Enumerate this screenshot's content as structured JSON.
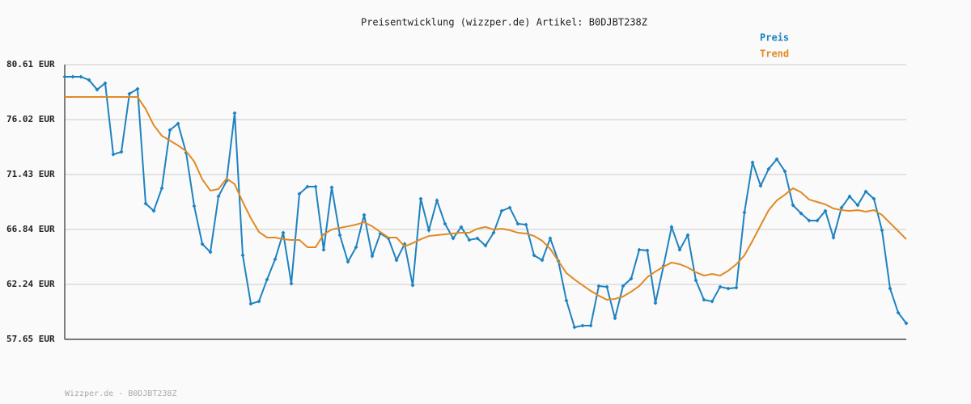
{
  "chart_data": {
    "type": "line",
    "title": "Preisentwicklung (wizzper.de) Artikel: B0DJBT238Z",
    "footer": "Wizzper.de - B0DJBT238Z",
    "ylim": [
      57.65,
      80.61
    ],
    "yticks": [
      {
        "value": 57.65,
        "label": "57.65 EUR"
      },
      {
        "value": 62.24,
        "label": "62.24 EUR"
      },
      {
        "value": 66.84,
        "label": "66.84 EUR"
      },
      {
        "value": 71.43,
        "label": "71.43 EUR"
      },
      {
        "value": 76.02,
        "label": "76.02 EUR"
      },
      {
        "value": 80.61,
        "label": "80.61 EUR"
      }
    ],
    "grid": true,
    "legend": "top-right",
    "series": [
      {
        "name": "Preis",
        "color": "#1e82c0",
        "markers": true,
        "values": [
          79.6,
          79.6,
          79.6,
          79.33,
          78.52,
          79.06,
          73.11,
          73.32,
          78.18,
          78.58,
          69.0,
          68.39,
          70.28,
          75.14,
          75.68,
          73.25,
          68.79,
          65.62,
          64.94,
          69.6,
          70.89,
          76.56,
          64.67,
          60.62,
          60.82,
          62.65,
          64.34,
          66.56,
          62.31,
          69.81,
          70.41,
          70.41,
          65.14,
          70.35,
          66.36,
          64.13,
          65.35,
          68.05,
          64.61,
          66.5,
          66.09,
          64.27,
          65.62,
          62.17,
          69.4,
          66.77,
          69.26,
          67.31,
          66.09,
          67.04,
          65.96,
          66.09,
          65.48,
          66.56,
          68.39,
          68.66,
          67.31,
          67.24,
          64.67,
          64.27,
          66.09,
          64.2,
          60.89,
          58.66,
          58.8,
          58.8,
          62.11,
          62.04,
          59.41,
          62.11,
          62.72,
          65.14,
          65.08,
          60.69,
          63.79,
          67.04,
          65.14,
          66.36,
          62.58,
          60.96,
          60.82,
          62.04,
          61.9,
          61.97,
          68.25,
          72.44,
          70.48,
          71.9,
          72.71,
          71.7,
          68.86,
          68.18,
          67.58,
          67.58,
          68.39,
          66.16,
          68.66,
          69.6,
          68.86,
          70.01,
          69.4,
          66.77,
          61.9,
          59.88,
          58.99
        ]
      },
      {
        "name": "Trend",
        "color": "#e08a24",
        "markers": false,
        "values": [
          77.91,
          77.91,
          77.91,
          77.91,
          77.91,
          77.91,
          77.91,
          77.91,
          77.91,
          77.91,
          76.9,
          75.55,
          74.67,
          74.26,
          73.86,
          73.38,
          72.51,
          71.02,
          70.08,
          70.21,
          71.09,
          70.62,
          69.13,
          67.78,
          66.63,
          66.16,
          66.16,
          66.02,
          65.96,
          65.96,
          65.35,
          65.35,
          66.43,
          66.83,
          66.97,
          67.1,
          67.24,
          67.44,
          67.1,
          66.63,
          66.16,
          66.16,
          65.42,
          65.69,
          66.02,
          66.29,
          66.36,
          66.43,
          66.5,
          66.56,
          66.56,
          66.9,
          67.04,
          66.83,
          66.9,
          66.77,
          66.56,
          66.5,
          66.29,
          65.89,
          65.21,
          64.2,
          63.19,
          62.65,
          62.17,
          61.7,
          61.3,
          60.96,
          61.03,
          61.23,
          61.63,
          62.11,
          62.85,
          63.32,
          63.73,
          64.07,
          63.93,
          63.66,
          63.26,
          62.98,
          63.12,
          62.98,
          63.39,
          63.93,
          64.67,
          65.89,
          67.17,
          68.45,
          69.26,
          69.74,
          70.28,
          69.94,
          69.33,
          69.13,
          68.93,
          68.59,
          68.45,
          68.39,
          68.45,
          68.32,
          68.45,
          68.05,
          67.37,
          66.7,
          66.02
        ]
      }
    ]
  }
}
